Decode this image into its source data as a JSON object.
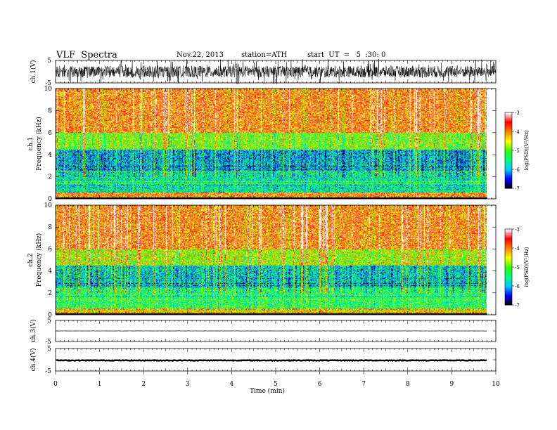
{
  "header": {
    "title": "VLF  Spectra",
    "date": "Nov.22, 2013",
    "station": "station=ATH",
    "start": "start  UT  =   5  :30: 0"
  },
  "chart_data": [
    {
      "type": "line",
      "name": "ch1-waveform",
      "ylabel": "ch.1(V)",
      "ylim": [
        -5,
        5
      ],
      "yticks": [
        "5",
        "-5"
      ],
      "xlim": [
        0,
        10
      ],
      "amplitude": 0.8,
      "color": "#000000"
    },
    {
      "type": "heatmap",
      "name": "ch1-spectrogram",
      "ylabel": "ch.1\nFrequency  (kHz)",
      "ylim": [
        0,
        10
      ],
      "yticks": [
        "0",
        "2",
        "4",
        "6",
        "8",
        "10"
      ],
      "xlim": [
        0,
        9.8
      ],
      "colorbar": {
        "label": "log(PSD)(V²/Hz)",
        "range": [
          -7,
          -3
        ],
        "ticks": [
          "-3",
          "-4",
          "-5",
          "-6",
          "-7"
        ],
        "colors": [
          "#000000",
          "#0000ff",
          "#00c8ff",
          "#00ff80",
          "#30ff00",
          "#ffff00",
          "#ff8000",
          "#ff0000",
          "#ffffff"
        ]
      },
      "bands": [
        {
          "from": 0,
          "to": 0.6,
          "level": -3.8
        },
        {
          "from": 0.6,
          "to": 2.5,
          "level": -5.6
        },
        {
          "from": 2.5,
          "to": 4.5,
          "level": -5.9
        },
        {
          "from": 4.5,
          "to": 6,
          "level": -4.8
        },
        {
          "from": 6,
          "to": 10,
          "level": -3.8
        }
      ]
    },
    {
      "type": "heatmap",
      "name": "ch2-spectrogram",
      "ylabel": "ch.2\nFrequency  (kHz)",
      "ylim": [
        0,
        10
      ],
      "yticks": [
        "0",
        "2",
        "4",
        "6",
        "8",
        "10"
      ],
      "xlim": [
        0,
        9.8
      ],
      "colorbar": {
        "label": "log(PSD)(V²/Hz)",
        "range": [
          -7,
          -3
        ],
        "ticks": [
          "-3",
          "-4",
          "-5",
          "-6",
          "-7"
        ],
        "colors": [
          "#000000",
          "#0000ff",
          "#00c8ff",
          "#00ff80",
          "#30ff00",
          "#ffff00",
          "#ff8000",
          "#ff0000",
          "#ffffff"
        ]
      },
      "bands": [
        {
          "from": 0,
          "to": 0.6,
          "level": -4.2
        },
        {
          "from": 0.6,
          "to": 2.5,
          "level": -5.3
        },
        {
          "from": 2.5,
          "to": 4.5,
          "level": -5.7
        },
        {
          "from": 4.5,
          "to": 6,
          "level": -4.6
        },
        {
          "from": 6,
          "to": 10,
          "level": -3.8
        }
      ]
    },
    {
      "type": "line",
      "name": "ch3-waveform",
      "ylabel": "ch.3(V)",
      "ylim": [
        -5,
        5
      ],
      "yticks": [
        "5",
        "-5"
      ],
      "xlim": [
        0,
        9.8
      ],
      "offset": 0,
      "amplitude": 0.05,
      "color": "#000000"
    },
    {
      "type": "line",
      "name": "ch4-waveform",
      "ylabel": "ch.4(V)",
      "ylim": [
        -5,
        5
      ],
      "yticks": [
        "5",
        "-5"
      ],
      "xlim": [
        0,
        9.8
      ],
      "offset": -0.3,
      "amplitude": 0.15,
      "color": "#000000"
    }
  ],
  "xaxis": {
    "label": "Time  (min)",
    "ticks": [
      "0",
      "1",
      "2",
      "3",
      "4",
      "5",
      "6",
      "7",
      "8",
      "9",
      "10"
    ],
    "range": [
      0,
      10
    ]
  }
}
